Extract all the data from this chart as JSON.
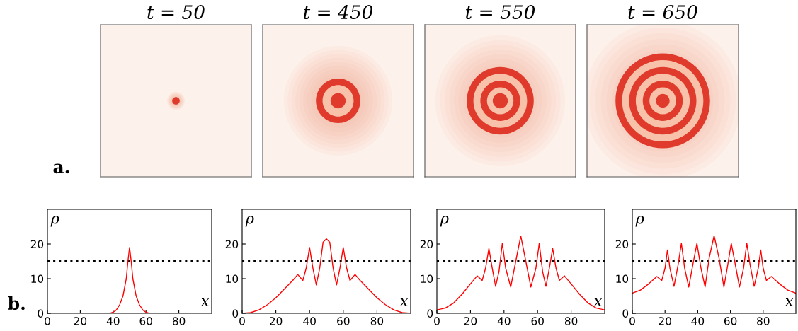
{
  "chart_data": [
    {
      "type": "other",
      "title": "t = 50",
      "annotations": [
        "a."
      ]
    },
    {
      "type": "other",
      "title": "t = 450"
    },
    {
      "type": "other",
      "title": "t = 550"
    },
    {
      "type": "other",
      "title": "t = 650"
    },
    {
      "type": "line",
      "xlabel": "x",
      "ylabel": "ρ",
      "xlim": [
        0,
        100
      ],
      "xticks": [
        0,
        20,
        40,
        60,
        80
      ],
      "ylim": [
        0,
        30
      ],
      "yticks": [
        0,
        10,
        20
      ],
      "grid": false,
      "annotations": [
        "b."
      ],
      "ref_lines": [
        {
          "axis": "y",
          "value": 15,
          "color": "#000000",
          "line_style": "dotted"
        }
      ],
      "series": [
        {
          "color": "#ff0000",
          "x": [
            0,
            38,
            40,
            42,
            44,
            46,
            48,
            49,
            50,
            51,
            52,
            54,
            56,
            58,
            60,
            62,
            100
          ],
          "values": [
            0,
            0,
            0.3,
            1,
            2.5,
            5,
            10,
            15,
            19,
            15,
            10,
            5,
            2.5,
            1,
            0.3,
            0,
            0
          ]
        }
      ]
    },
    {
      "type": "line",
      "xlabel": "x",
      "ylabel": "ρ",
      "xlim": [
        0,
        100
      ],
      "xticks": [
        0,
        20,
        40,
        60,
        80
      ],
      "ylim": [
        0,
        30
      ],
      "yticks": [
        0,
        10,
        20
      ],
      "grid": false,
      "ref_lines": [
        {
          "axis": "y",
          "value": 15,
          "color": "#000000",
          "line_style": "dotted"
        }
      ],
      "series": [
        {
          "color": "#ff0000",
          "x": [
            0,
            5,
            10,
            15,
            20,
            25,
            30,
            33,
            36,
            38,
            40,
            42,
            44,
            46,
            48,
            50,
            52,
            54,
            56,
            58,
            60,
            62,
            64,
            67,
            70,
            75,
            80,
            85,
            90,
            95,
            100
          ],
          "values": [
            0,
            0.2,
            1,
            2.5,
            4.5,
            7,
            9.5,
            11.2,
            9.5,
            13,
            19,
            13,
            8.2,
            13,
            20.5,
            21.5,
            20.5,
            13,
            8.2,
            13,
            19,
            13,
            9.5,
            11.2,
            9.5,
            7,
            4.5,
            2.5,
            1,
            0.2,
            0
          ]
        }
      ]
    },
    {
      "type": "line",
      "xlabel": "x",
      "ylabel": "ρ",
      "xlim": [
        0,
        100
      ],
      "xticks": [
        0,
        20,
        40,
        60,
        80
      ],
      "ylim": [
        0,
        30
      ],
      "yticks": [
        0,
        10,
        20
      ],
      "grid": false,
      "ref_lines": [
        {
          "axis": "y",
          "value": 15,
          "color": "#000000",
          "line_style": "dotted"
        }
      ],
      "series": [
        {
          "color": "#ff0000",
          "x": [
            0,
            5,
            10,
            15,
            20,
            24,
            27,
            29,
            31,
            33,
            35,
            37,
            39,
            41,
            44,
            47,
            50,
            53,
            56,
            59,
            61,
            63,
            65,
            67,
            69,
            71,
            73,
            76,
            80,
            85,
            90,
            95,
            100
          ],
          "values": [
            1,
            1.5,
            3,
            5.5,
            8.5,
            10.8,
            9.5,
            13,
            18.7,
            13,
            7.8,
            12,
            20.2,
            13,
            7.6,
            15,
            22.3,
            15,
            7.6,
            13,
            20.2,
            12,
            7.8,
            13,
            18.7,
            13,
            9.5,
            10.8,
            8.5,
            5.5,
            3,
            1.5,
            1
          ]
        }
      ]
    },
    {
      "type": "line",
      "xlabel": "x",
      "ylabel": "ρ",
      "xlim": [
        0,
        100
      ],
      "xticks": [
        0,
        20,
        40,
        60,
        80
      ],
      "ylim": [
        0,
        30
      ],
      "yticks": [
        0,
        10,
        20
      ],
      "grid": false,
      "ref_lines": [
        {
          "axis": "y",
          "value": 15,
          "color": "#000000",
          "line_style": "dotted"
        }
      ],
      "series": [
        {
          "color": "#ff0000",
          "x": [
            0,
            5,
            10,
            15,
            18,
            20,
            21.5,
            23,
            25.5,
            28,
            30,
            32,
            34.5,
            37,
            39.5,
            42,
            44.5,
            47,
            50,
            53,
            56,
            58,
            60.5,
            63,
            65.5,
            68,
            70,
            72,
            74.5,
            77,
            78.5,
            80,
            82,
            85,
            90,
            95,
            100
          ],
          "values": [
            5.8,
            6.7,
            8.5,
            10.6,
            9.5,
            13,
            18.3,
            13,
            7.8,
            14,
            20.2,
            13,
            7.6,
            14,
            20.2,
            13,
            7.6,
            16,
            22.4,
            16,
            7.6,
            13,
            20.2,
            14,
            7.6,
            13,
            20.2,
            14,
            7.8,
            13,
            18.3,
            13,
            9.5,
            10.6,
            8.5,
            6.7,
            5.8
          ]
        }
      ]
    }
  ]
}
